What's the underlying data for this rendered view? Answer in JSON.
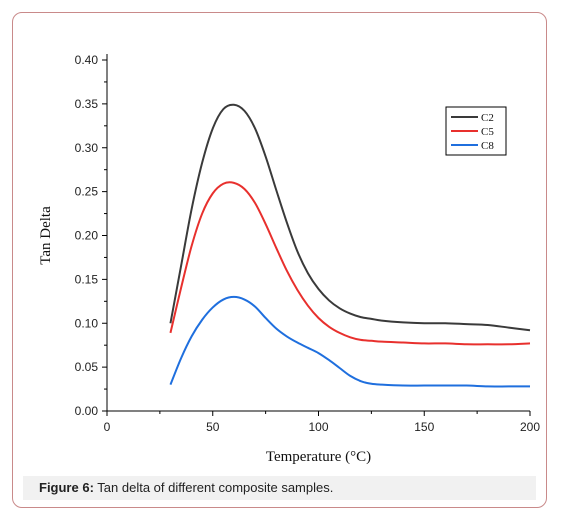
{
  "caption": {
    "label": "Figure 6:",
    "text": " Tan delta of different composite samples."
  },
  "chart_data": {
    "type": "line",
    "title": "",
    "xlabel": "Temperature (°C)",
    "ylabel": "Tan Delta",
    "xlim": [
      0,
      200
    ],
    "ylim": [
      0,
      0.4
    ],
    "xticks": [
      0,
      50,
      100,
      150,
      200
    ],
    "yticks": [
      0.0,
      0.05,
      0.1,
      0.15,
      0.2,
      0.25,
      0.3,
      0.35,
      0.4
    ],
    "ytick_labels": [
      "0.00",
      "0.05",
      "0.10",
      "0.15",
      "0.20",
      "0.25",
      "0.30",
      "0.35",
      "0.40"
    ],
    "grid": false,
    "legend": "top-right",
    "series": [
      {
        "name": "C2",
        "color": "#3a3a3a",
        "x": [
          30,
          35,
          40,
          45,
          50,
          55,
          60,
          65,
          70,
          75,
          80,
          85,
          90,
          95,
          100,
          105,
          110,
          115,
          120,
          125,
          130,
          140,
          150,
          160,
          170,
          180,
          190,
          200
        ],
        "y": [
          0.1,
          0.165,
          0.23,
          0.283,
          0.322,
          0.344,
          0.349,
          0.342,
          0.322,
          0.29,
          0.252,
          0.215,
          0.182,
          0.157,
          0.139,
          0.126,
          0.117,
          0.111,
          0.107,
          0.105,
          0.103,
          0.101,
          0.1,
          0.1,
          0.099,
          0.098,
          0.095,
          0.092
        ]
      },
      {
        "name": "C5",
        "color": "#e8302d",
        "x": [
          30,
          35,
          40,
          45,
          50,
          55,
          60,
          65,
          70,
          75,
          80,
          85,
          90,
          95,
          100,
          105,
          110,
          115,
          120,
          125,
          130,
          140,
          150,
          160,
          170,
          180,
          190,
          200
        ],
        "y": [
          0.089,
          0.14,
          0.188,
          0.225,
          0.248,
          0.259,
          0.26,
          0.253,
          0.237,
          0.213,
          0.186,
          0.16,
          0.138,
          0.12,
          0.106,
          0.096,
          0.089,
          0.084,
          0.081,
          0.08,
          0.079,
          0.078,
          0.077,
          0.077,
          0.076,
          0.076,
          0.076,
          0.077
        ]
      },
      {
        "name": "C8",
        "color": "#1f6fde",
        "x": [
          30,
          35,
          40,
          45,
          50,
          55,
          60,
          65,
          70,
          75,
          80,
          85,
          90,
          95,
          100,
          105,
          110,
          115,
          120,
          125,
          130,
          140,
          150,
          160,
          170,
          180,
          190,
          200
        ],
        "y": [
          0.03,
          0.06,
          0.085,
          0.104,
          0.118,
          0.127,
          0.13,
          0.127,
          0.119,
          0.106,
          0.094,
          0.085,
          0.078,
          0.072,
          0.066,
          0.058,
          0.049,
          0.04,
          0.034,
          0.031,
          0.03,
          0.029,
          0.029,
          0.029,
          0.029,
          0.028,
          0.028,
          0.028
        ]
      }
    ]
  }
}
